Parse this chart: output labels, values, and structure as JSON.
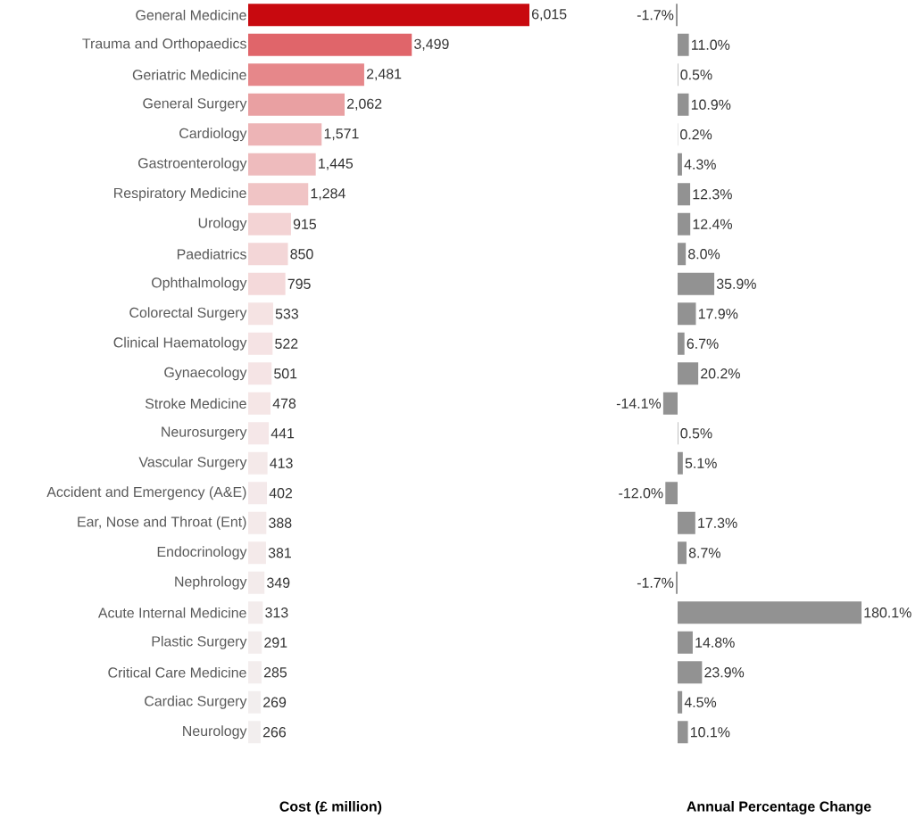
{
  "chart_data": [
    {
      "type": "bar",
      "orientation": "horizontal",
      "xlabel": "Cost (£ million)",
      "categories": [
        "General Medicine",
        "Trauma and Orthopaedics",
        "Geriatric Medicine",
        "General Surgery",
        "Cardiology",
        "Gastroenterology",
        "Respiratory Medicine",
        "Urology",
        "Paediatrics",
        "Ophthalmology",
        "Colorectal Surgery",
        "Clinical Haematology",
        "Gynaecology",
        "Stroke Medicine",
        "Neurosurgery",
        "Vascular Surgery",
        "Accident and Emergency (A&E)",
        "Ear, Nose and Throat (Ent)",
        "Endocrinology",
        "Nephrology",
        "Acute Internal Medicine",
        "Plastic Surgery",
        "Critical Care Medicine",
        "Cardiac Surgery",
        "Neurology"
      ],
      "values": [
        6015,
        3499,
        2481,
        2062,
        1571,
        1445,
        1284,
        915,
        850,
        795,
        533,
        522,
        501,
        478,
        441,
        413,
        402,
        388,
        381,
        349,
        313,
        291,
        285,
        269,
        266
      ],
      "value_labels": [
        "6,015",
        "3,499",
        "2,481",
        "2,062",
        "1,571",
        "1,445",
        "1,284",
        "915",
        "850",
        "795",
        "533",
        "522",
        "501",
        "478",
        "441",
        "413",
        "402",
        "388",
        "381",
        "349",
        "313",
        "291",
        "285",
        "269",
        "266"
      ],
      "colors": [
        "#c8090f",
        "#e0656a",
        "#e6878a",
        "#e9a0a2",
        "#edb4b6",
        "#eebbbd",
        "#f0c4c5",
        "#f3d3d4",
        "#f3d6d7",
        "#f4d9da",
        "#f5e3e3",
        "#f5e3e4",
        "#f5e4e5",
        "#f5e6e6",
        "#f5e7e8",
        "#f4e9e9",
        "#f4e9ea",
        "#f4eaea",
        "#f4eaea",
        "#f3ebeb",
        "#f3ecec",
        "#f3eded",
        "#f3eded",
        "#f2eeee",
        "#f2eeee"
      ]
    },
    {
      "type": "bar",
      "orientation": "horizontal",
      "xlabel": "Annual Percentage Change",
      "categories": [
        null,
        null,
        null,
        null,
        null,
        null,
        null,
        null,
        null,
        null,
        null,
        null,
        null,
        null,
        null,
        null,
        null,
        null,
        null,
        null,
        null,
        null,
        null,
        null,
        null
      ],
      "values": [
        -1.7,
        11.0,
        0.5,
        10.9,
        0.2,
        4.3,
        12.3,
        12.4,
        8.0,
        35.9,
        17.9,
        6.7,
        20.2,
        -14.1,
        0.5,
        5.1,
        -12.0,
        17.3,
        8.7,
        -1.7,
        180.1,
        14.8,
        23.9,
        4.5,
        10.1
      ],
      "value_labels": [
        "-1.7%",
        "11.0%",
        "0.5%",
        "10.9%",
        "0.2%",
        "4.3%",
        "12.3%",
        "12.4%",
        "8.0%",
        "35.9%",
        "17.9%",
        "6.7%",
        "20.2%",
        "-14.1%",
        "0.5%",
        "5.1%",
        "-12.0%",
        "17.3%",
        "8.7%",
        "-1.7%",
        "180.1%",
        "14.8%",
        "23.9%",
        "4.5%",
        "10.1%"
      ],
      "color": "#929292"
    }
  ]
}
